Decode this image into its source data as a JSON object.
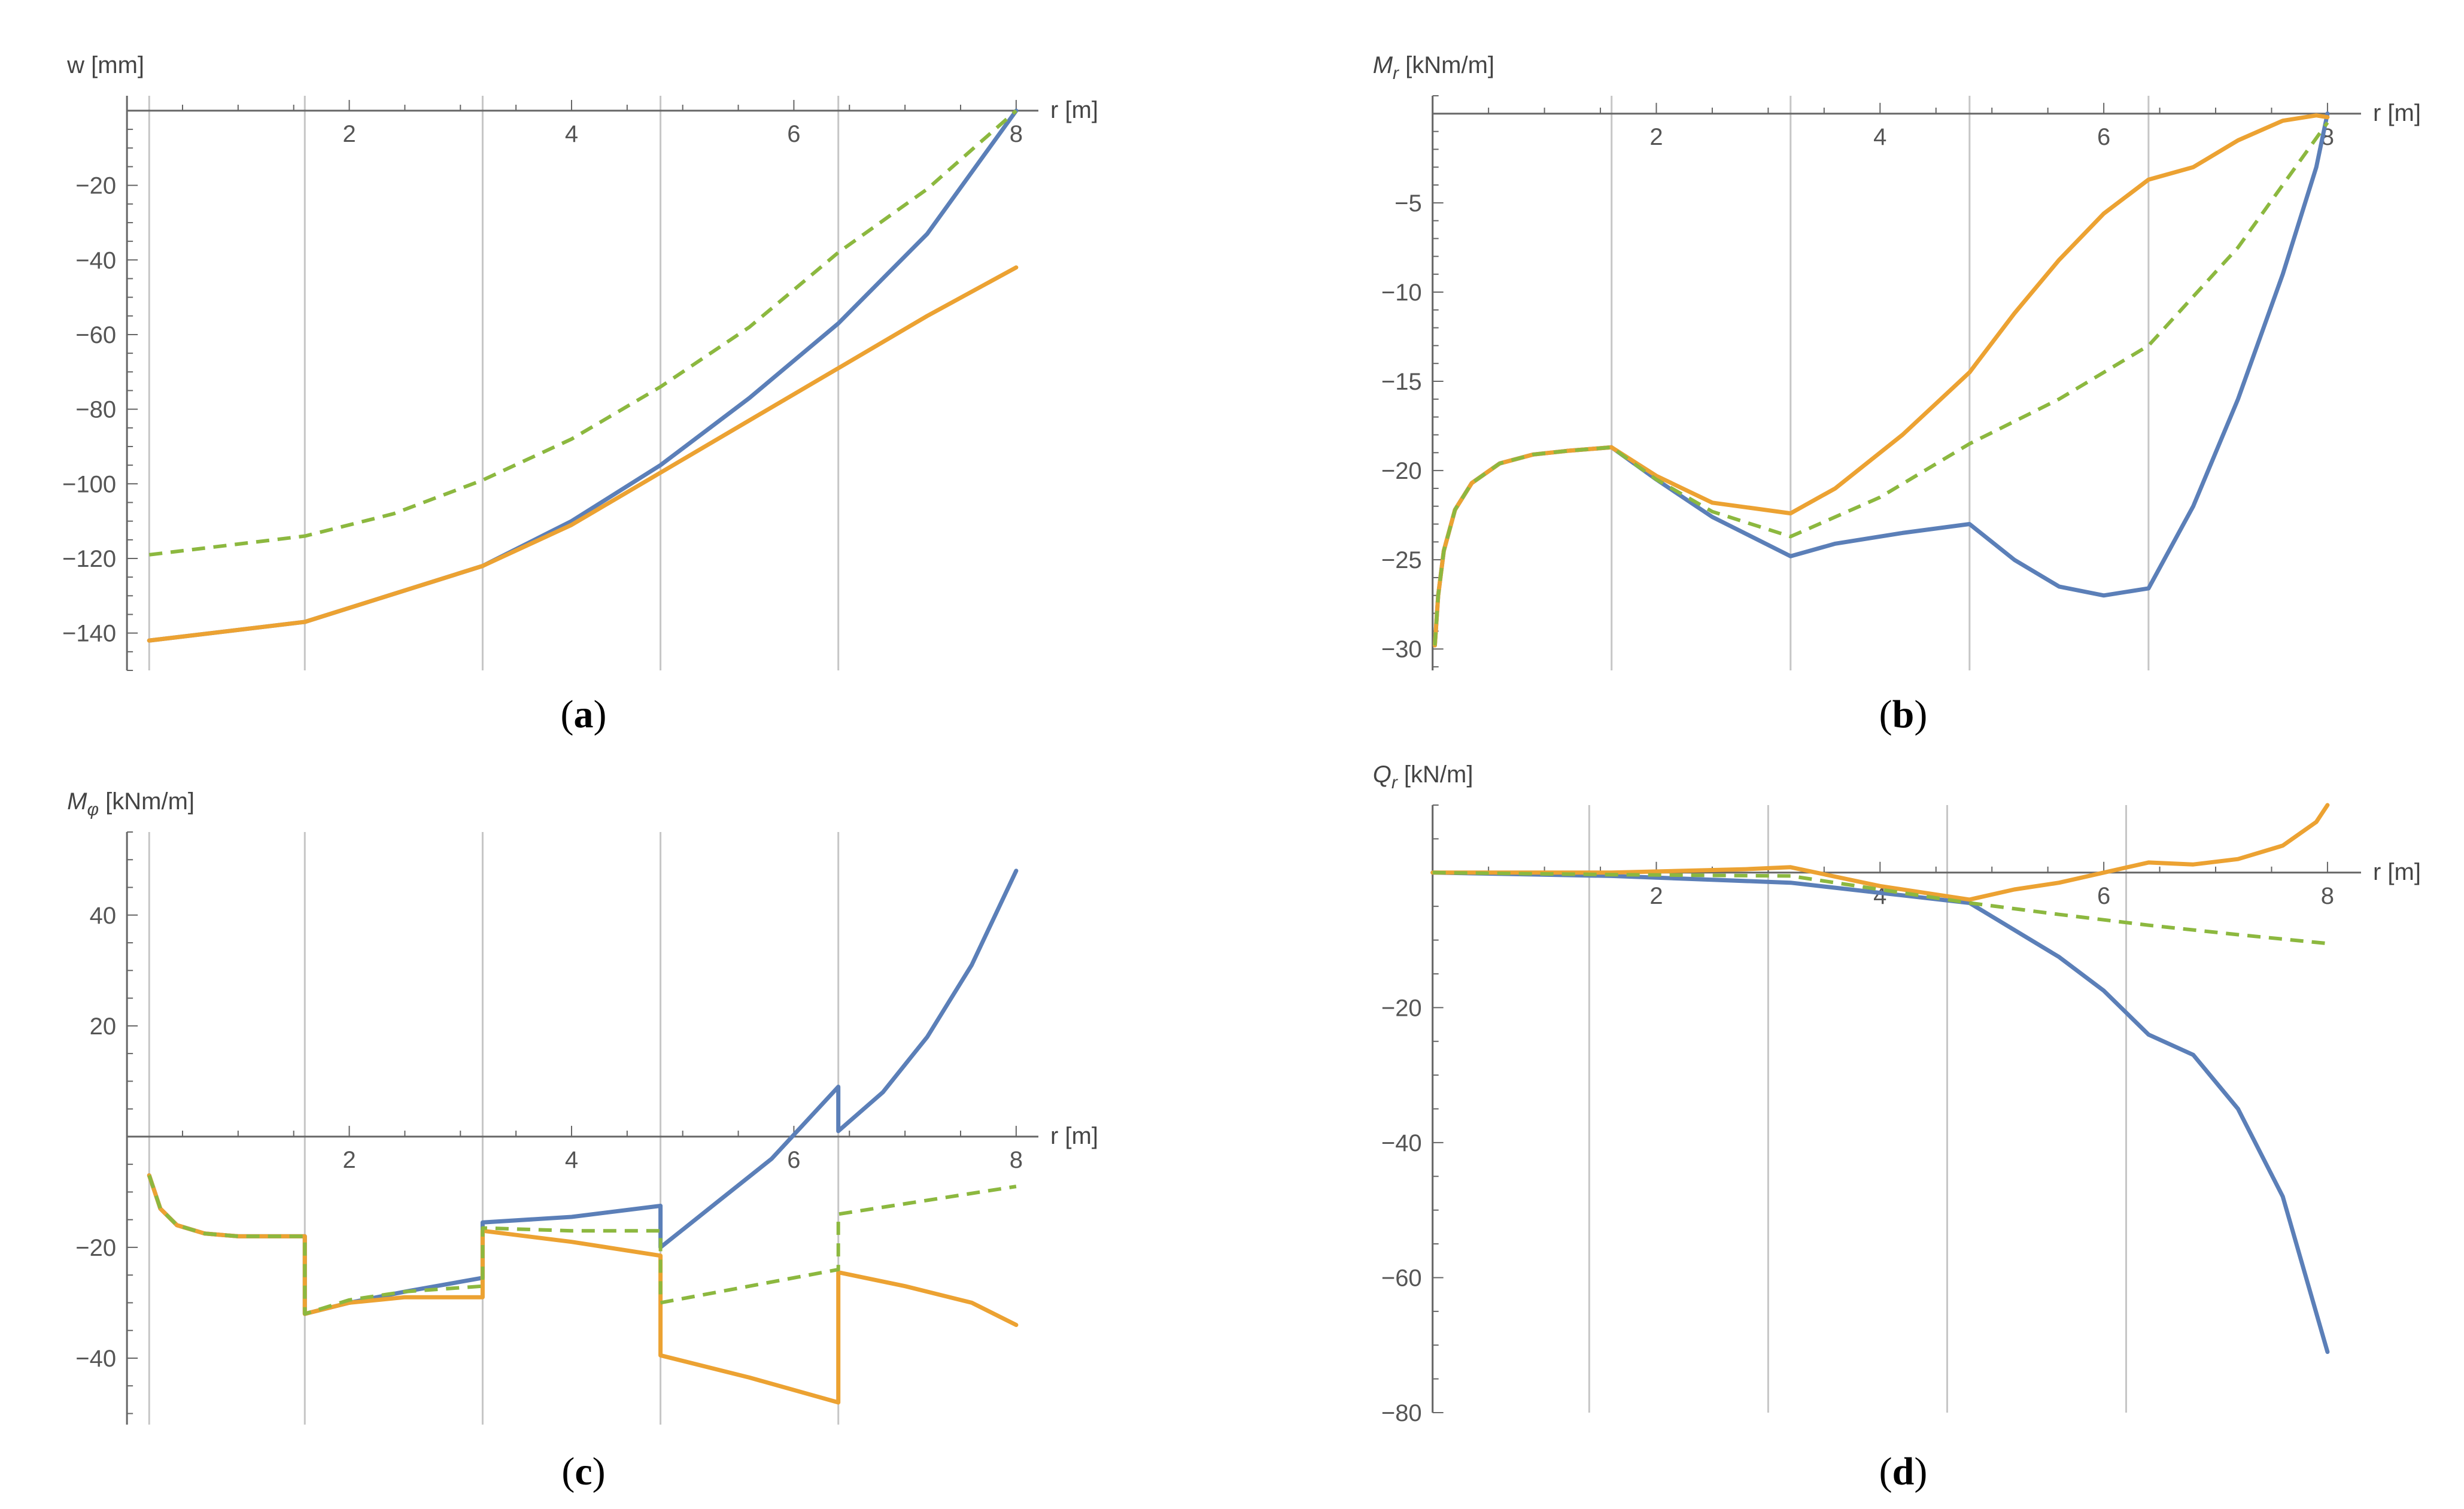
{
  "figure": {
    "colors": {
      "blue": "#5b7fb8",
      "orange": "#eca232",
      "green": "#8cb83f",
      "axis": "#666666",
      "gridline": "#c6c6c6"
    }
  },
  "chart_data": [
    {
      "id": "a",
      "type": "line",
      "caption": "a",
      "ylabel_text": "w [mm]",
      "ylabel_italic": "",
      "ylabel_sub": "",
      "ylabel_unit": "",
      "xlabel": "r [m]",
      "xlim": [
        -0.2,
        8.2
      ],
      "ylim": [
        -150,
        4
      ],
      "xticks": [
        "2",
        "4",
        "6",
        "8"
      ],
      "yticks": [
        "-20",
        "-40",
        "-60",
        "-80",
        "-100",
        "-120",
        "-140"
      ],
      "gridlines_x": [
        0.2,
        1.6,
        3.2,
        4.8,
        6.4
      ],
      "series": [
        {
          "name": "blue",
          "style": "solid",
          "x": [
            0.2,
            1.6,
            3.2,
            4.0,
            4.8,
            5.6,
            6.4,
            7.2,
            8.0
          ],
          "y": [
            -142,
            -137,
            -122,
            -110,
            -95,
            -77,
            -57,
            -33,
            0
          ]
        },
        {
          "name": "orange",
          "style": "solid",
          "x": [
            0.2,
            1.6,
            3.2,
            4.0,
            4.8,
            5.6,
            6.4,
            7.2,
            8.0
          ],
          "y": [
            -142,
            -137,
            -122,
            -111,
            -97,
            -83,
            -69,
            -55,
            -42
          ]
        },
        {
          "name": "green",
          "style": "dashed",
          "x": [
            0.2,
            1.6,
            2.4,
            3.2,
            4.0,
            4.8,
            5.6,
            6.4,
            7.2,
            8.0
          ],
          "y": [
            -119,
            -114,
            -108,
            -99,
            -88,
            -74,
            -58,
            -38,
            -21,
            0
          ]
        }
      ]
    },
    {
      "id": "b",
      "type": "line",
      "caption": "b",
      "ylabel_text": "",
      "ylabel_italic": "M",
      "ylabel_sub": "r",
      "ylabel_unit": " [kNm/m]",
      "xlabel": "r [m]",
      "xlim": [
        -0.1,
        8.3
      ],
      "ylim": [
        -31.2,
        1
      ],
      "xticks": [
        "2",
        "4",
        "6",
        "8"
      ],
      "yticks": [
        "-5",
        "-10",
        "-15",
        "-20",
        "-25",
        "-30"
      ],
      "gridlines_x": [
        0.0,
        1.6,
        3.2,
        4.8,
        6.4
      ],
      "series": [
        {
          "name": "blue",
          "style": "solid",
          "x": [
            0.02,
            0.05,
            0.1,
            0.2,
            0.35,
            0.6,
            0.9,
            1.2,
            1.6,
            2.0,
            2.5,
            3.2,
            3.6,
            4.2,
            4.8,
            5.2,
            5.6,
            6.0,
            6.4,
            6.8,
            7.2,
            7.6,
            7.9,
            8.0
          ],
          "y": [
            -29.8,
            -27,
            -24.5,
            -22.2,
            -20.7,
            -19.6,
            -19.1,
            -18.9,
            -18.7,
            -20.5,
            -22.6,
            -24.8,
            -24.1,
            -23.5,
            -23.0,
            -25.0,
            -26.5,
            -27.0,
            -26.6,
            -22,
            -16,
            -9,
            -3,
            0
          ]
        },
        {
          "name": "orange",
          "style": "solid",
          "x": [
            0.02,
            0.05,
            0.1,
            0.2,
            0.35,
            0.6,
            0.9,
            1.2,
            1.6,
            2.0,
            2.5,
            3.2,
            3.6,
            4.2,
            4.8,
            5.2,
            5.6,
            6.0,
            6.4,
            6.8,
            7.2,
            7.6,
            7.9,
            8.0
          ],
          "y": [
            -29.8,
            -27,
            -24.5,
            -22.2,
            -20.7,
            -19.6,
            -19.1,
            -18.9,
            -18.7,
            -20.3,
            -21.8,
            -22.4,
            -21.0,
            -18.0,
            -14.5,
            -11.2,
            -8.2,
            -5.6,
            -3.7,
            -3.0,
            -1.5,
            -0.4,
            -0.1,
            -0.2
          ]
        },
        {
          "name": "green",
          "style": "dashed",
          "x": [
            0.02,
            0.05,
            0.1,
            0.2,
            0.35,
            0.6,
            0.9,
            1.2,
            1.6,
            2.0,
            2.5,
            3.2,
            4.0,
            4.8,
            5.6,
            6.4,
            7.2,
            8.0
          ],
          "y": [
            -29.8,
            -27,
            -24.5,
            -22.2,
            -20.7,
            -19.6,
            -19.1,
            -18.9,
            -18.7,
            -20.5,
            -22.3,
            -23.7,
            -21.5,
            -18.5,
            -16.0,
            -13.0,
            -7.5,
            -0.5
          ]
        }
      ]
    },
    {
      "id": "c",
      "type": "line",
      "caption": "c",
      "ylabel_text": "",
      "ylabel_italic": "M",
      "ylabel_sub": "φ",
      "ylabel_unit": " [kNm/m]",
      "xlabel": "r [m]",
      "xlim": [
        -0.2,
        8.2
      ],
      "ylim": [
        -52,
        55
      ],
      "xticks": [
        "2",
        "4",
        "6",
        "8"
      ],
      "yticks": [
        "40",
        "20",
        "-20",
        "-40"
      ],
      "gridlines_x": [
        0.2,
        1.6,
        3.2,
        4.8,
        6.4
      ],
      "series": [
        {
          "name": "blue",
          "style": "solid",
          "x": [
            0.2,
            0.3,
            0.45,
            0.7,
            1.0,
            1.3,
            1.6,
            1.6,
            2.0,
            2.5,
            3.2,
            3.2,
            4.0,
            4.8,
            4.8,
            5.3,
            5.8,
            6.4,
            6.4,
            6.8,
            7.2,
            7.6,
            8.0
          ],
          "y": [
            -7,
            -13,
            -16,
            -17.5,
            -18,
            -18,
            -18,
            -32,
            -30,
            -28,
            -25.5,
            -15.5,
            -14.5,
            -12.5,
            -20,
            -12,
            -4,
            9,
            1,
            8,
            18,
            31,
            48
          ]
        },
        {
          "name": "orange",
          "style": "solid",
          "x": [
            0.2,
            0.3,
            0.45,
            0.7,
            1.0,
            1.3,
            1.6,
            1.6,
            2.0,
            2.5,
            3.2,
            3.2,
            4.0,
            4.8,
            4.8,
            5.6,
            6.4,
            6.4,
            7.0,
            7.6,
            8.0
          ],
          "y": [
            -7,
            -13,
            -16,
            -17.5,
            -18,
            -18,
            -18,
            -32,
            -30,
            -29,
            -29,
            -17,
            -19,
            -21.5,
            -39.5,
            -43.5,
            -48,
            -24.5,
            -27,
            -30,
            -34
          ]
        },
        {
          "name": "green",
          "style": "dashed",
          "x": [
            0.2,
            0.3,
            0.45,
            0.7,
            1.0,
            1.3,
            1.6,
            1.6,
            2.0,
            2.5,
            3.2,
            3.2,
            4.0,
            4.8,
            4.8,
            5.6,
            6.4,
            6.4,
            7.2,
            8.0
          ],
          "y": [
            -7,
            -13,
            -16,
            -17.5,
            -18,
            -18,
            -18,
            -32,
            -29.5,
            -28,
            -27,
            -16.5,
            -17,
            -17,
            -30,
            -27,
            -24,
            -14,
            -11.5,
            -9
          ]
        }
      ]
    },
    {
      "id": "d",
      "type": "line",
      "caption": "d",
      "ylabel_text": "",
      "ylabel_italic": "Q",
      "ylabel_sub": "r",
      "ylabel_unit": " [kN/m]",
      "xlabel": "r [m]",
      "xlim": [
        -0.1,
        8.3
      ],
      "ylim": [
        -80,
        10
      ],
      "xticks": [
        "2",
        "4",
        "6",
        "8"
      ],
      "yticks": [
        "-20",
        "-40",
        "-60",
        "-80"
      ],
      "gridlines_x": [
        0.0,
        1.4,
        3.0,
        4.6,
        6.2
      ],
      "series": [
        {
          "name": "blue",
          "style": "solid",
          "x": [
            0.0,
            1.6,
            3.2,
            4.0,
            4.8,
            5.2,
            5.6,
            6.0,
            6.4,
            6.8,
            7.2,
            7.6,
            8.0
          ],
          "y": [
            0,
            -0.5,
            -1.5,
            -3,
            -4.5,
            -8.5,
            -12.5,
            -17.5,
            -24,
            -27,
            -35,
            -48,
            -71
          ]
        },
        {
          "name": "orange",
          "style": "solid",
          "x": [
            0.0,
            1.6,
            2.8,
            3.2,
            4.0,
            4.8,
            5.2,
            5.6,
            6.0,
            6.4,
            6.8,
            7.2,
            7.6,
            7.9,
            8.0
          ],
          "y": [
            0,
            0,
            0.5,
            0.8,
            -2,
            -4.0,
            -2.5,
            -1.5,
            0,
            1.5,
            1.2,
            2,
            4,
            7.5,
            10
          ]
        },
        {
          "name": "green",
          "style": "dashed",
          "x": [
            0.0,
            1.6,
            3.2,
            4.0,
            4.8,
            5.6,
            6.4,
            7.2,
            8.0
          ],
          "y": [
            0,
            -0.3,
            -0.5,
            -2.5,
            -4.5,
            -6.2,
            -7.8,
            -9.2,
            -10.5
          ]
        }
      ]
    }
  ]
}
